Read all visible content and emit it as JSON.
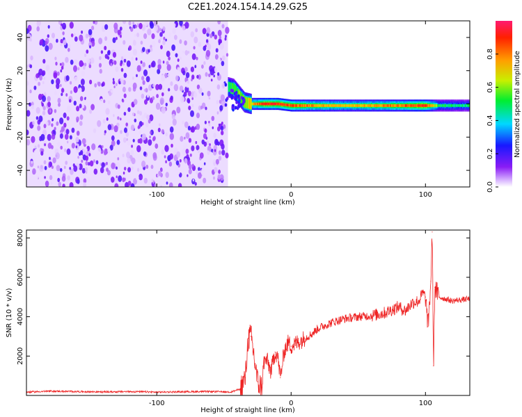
{
  "chart_data": [
    {
      "type": "heatmap",
      "title": "C2E1.2024.154.14.29.G25",
      "xlabel": "Height of straight line (km)",
      "ylabel": "Frequency (Hz)",
      "xlim": [
        -197,
        133
      ],
      "ylim": [
        -50,
        50
      ],
      "x_ticks": [
        -100,
        0,
        100
      ],
      "y_ticks": [
        -40,
        -20,
        0,
        20,
        40
      ],
      "grid": false,
      "colorbar": {
        "label": "Normalized spectral amplitude",
        "range": [
          0,
          1
        ],
        "ticks": [
          0.0,
          0.2,
          0.4,
          0.6,
          0.8
        ],
        "colormap": "rainbow (white-purple-blue-cyan-green-yellow-red)"
      },
      "noise_region": {
        "x_from": -197,
        "x_to": -47,
        "y_from": -50,
        "y_to": 50,
        "typical_amplitude": 0.2
      },
      "signal_band_centerline": {
        "x": [
          -47,
          -43,
          -39,
          -35,
          -30,
          -25,
          -20,
          -10,
          0,
          10,
          20,
          40,
          60,
          80,
          100,
          110,
          120,
          133
        ],
        "frequency": [
          10,
          9,
          5,
          1,
          0,
          0,
          0,
          0,
          -1,
          -1,
          -1,
          -1,
          -1,
          -1,
          -1,
          -1,
          -1,
          -1
        ],
        "amplitude": [
          0.45,
          0.5,
          0.55,
          0.6,
          0.7,
          0.8,
          0.9,
          0.9,
          0.85,
          0.8,
          0.75,
          0.7,
          0.75,
          0.8,
          0.9,
          0.5,
          0.45,
          0.45
        ]
      }
    },
    {
      "type": "line",
      "xlabel": "Height of straight line (km)",
      "ylabel": "SNR (10 * v/v)",
      "xlim": [
        -197,
        133
      ],
      "ylim": [
        0,
        8400
      ],
      "x_ticks": [
        -100,
        0,
        100
      ],
      "y_ticks": [
        2000,
        4000,
        6000,
        8000
      ],
      "grid": false,
      "line_color": "#ee2222",
      "series": [
        {
          "x": [
            -197,
            -180,
            -160,
            -140,
            -120,
            -100,
            -80,
            -60,
            -45,
            -38,
            -34,
            -32,
            -30,
            -28,
            -25,
            -22,
            -20,
            -18,
            -15,
            -12,
            -10,
            -8,
            -5,
            -2,
            0,
            5,
            10,
            15,
            20,
            30,
            40,
            50,
            60,
            70,
            80,
            85,
            90,
            95,
            98,
            100,
            102,
            104,
            105,
            106,
            107,
            110,
            115,
            120,
            125,
            133
          ],
          "y": [
            150,
            200,
            180,
            160,
            180,
            150,
            170,
            180,
            160,
            300,
            900,
            2900,
            3000,
            2200,
            700,
            400,
            1700,
            1800,
            1200,
            2200,
            2000,
            900,
            2300,
            2700,
            2500,
            2700,
            2900,
            3100,
            3400,
            3700,
            3900,
            4000,
            4050,
            4200,
            4500,
            4300,
            4700,
            4800,
            5200,
            5000,
            3500,
            5800,
            8300,
            1500,
            5500,
            5000,
            4900,
            4800,
            4850,
            4900
          ]
        }
      ]
    }
  ]
}
